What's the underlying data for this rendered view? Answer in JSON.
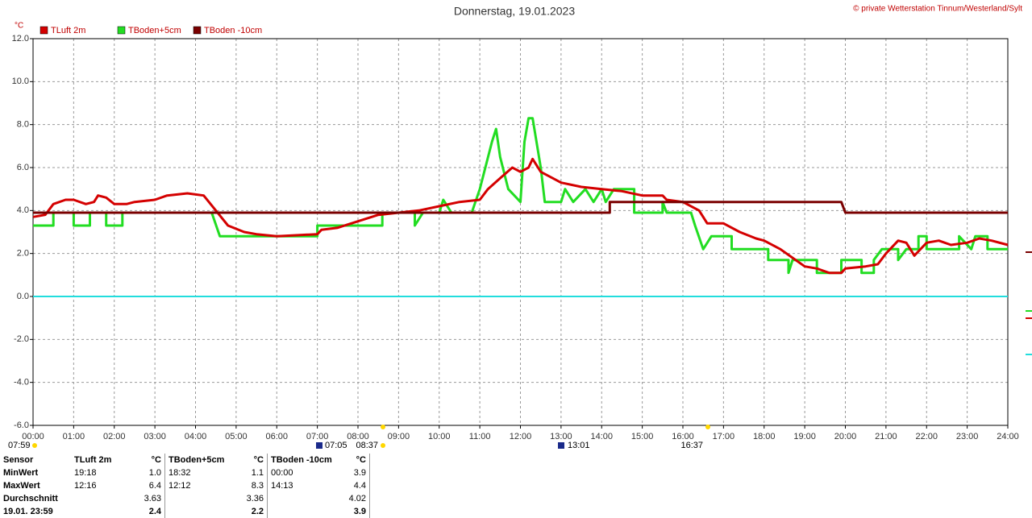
{
  "chart_data": {
    "type": "line",
    "title": "Donnerstag, 19.01.2023",
    "credit": "© private Wetterstation Tinnum/Westerland/Sylt",
    "y_unit": "°C",
    "xlim": [
      0,
      24
    ],
    "ylim": [
      -6,
      12
    ],
    "grid": true,
    "xticks": [
      {
        "value": 0,
        "label": "00:00"
      },
      {
        "value": 1,
        "label": "01:00"
      },
      {
        "value": 2,
        "label": "02:00"
      },
      {
        "value": 3,
        "label": "03:00"
      },
      {
        "value": 4,
        "label": "04:00"
      },
      {
        "value": 5,
        "label": "05:00"
      },
      {
        "value": 6,
        "label": "06:00"
      },
      {
        "value": 7,
        "label": "07:00"
      },
      {
        "value": 8,
        "label": "08:00"
      },
      {
        "value": 9,
        "label": "09:00"
      },
      {
        "value": 10,
        "label": "10:00"
      },
      {
        "value": 11,
        "label": "11:00"
      },
      {
        "value": 12,
        "label": "12:00"
      },
      {
        "value": 13,
        "label": "13:00"
      },
      {
        "value": 14,
        "label": "14:00"
      },
      {
        "value": 15,
        "label": "15:00"
      },
      {
        "value": 16,
        "label": "16:00"
      },
      {
        "value": 17,
        "label": "17:00"
      },
      {
        "value": 18,
        "label": "18:00"
      },
      {
        "value": 19,
        "label": "19:00"
      },
      {
        "value": 20,
        "label": "20:00"
      },
      {
        "value": 21,
        "label": "21:00"
      },
      {
        "value": 22,
        "label": "22:00"
      },
      {
        "value": 23,
        "label": "23:00"
      },
      {
        "value": 24,
        "label": "24:00"
      }
    ],
    "yticks": [
      {
        "value": -6,
        "label": "-6.0"
      },
      {
        "value": -4,
        "label": "-4.0"
      },
      {
        "value": -2,
        "label": "-2.0"
      },
      {
        "value": 0,
        "label": "0.0"
      },
      {
        "value": 2,
        "label": "2.0"
      },
      {
        "value": 4,
        "label": "4.0"
      },
      {
        "value": 6,
        "label": "6.0"
      },
      {
        "value": 8,
        "label": "8.0"
      },
      {
        "value": 10,
        "label": "10.0"
      },
      {
        "value": 12,
        "label": "12.0"
      }
    ],
    "reference_line": {
      "value": 0,
      "color": "#22dddd"
    },
    "series": [
      {
        "name": "TLuft 2m",
        "color": "#d40000",
        "x": [
          0,
          0.3,
          0.5,
          0.8,
          1.0,
          1.3,
          1.5,
          1.6,
          1.8,
          2.0,
          2.3,
          2.5,
          3.0,
          3.3,
          3.8,
          4.2,
          4.5,
          4.8,
          5.2,
          5.5,
          6.0,
          7.0,
          7.1,
          7.5,
          8.0,
          8.5,
          9.0,
          9.5,
          10.0,
          10.5,
          11.0,
          11.2,
          11.5,
          11.8,
          12.0,
          12.2,
          12.3,
          12.5,
          12.8,
          13.0,
          13.5,
          14.0,
          14.5,
          15.0,
          15.5,
          15.6,
          16.0,
          16.4,
          16.6,
          17.0,
          17.4,
          17.8,
          18.0,
          18.4,
          18.7,
          19.0,
          19.3,
          19.6,
          19.9,
          20.0,
          20.5,
          20.8,
          21.0,
          21.3,
          21.5,
          21.7,
          22.0,
          22.3,
          22.6,
          23.0,
          23.3,
          23.6,
          24.0
        ],
        "values": [
          3.7,
          3.8,
          4.3,
          4.5,
          4.5,
          4.3,
          4.4,
          4.7,
          4.6,
          4.3,
          4.3,
          4.4,
          4.5,
          4.7,
          4.8,
          4.7,
          4.0,
          3.3,
          3.0,
          2.9,
          2.8,
          2.9,
          3.1,
          3.2,
          3.5,
          3.8,
          3.9,
          4.0,
          4.2,
          4.4,
          4.5,
          5.0,
          5.5,
          6.0,
          5.8,
          6.0,
          6.4,
          5.8,
          5.5,
          5.3,
          5.1,
          5.0,
          4.9,
          4.7,
          4.7,
          4.5,
          4.4,
          4.0,
          3.4,
          3.4,
          3.0,
          2.7,
          2.6,
          2.2,
          1.8,
          1.4,
          1.3,
          1.1,
          1.1,
          1.3,
          1.4,
          1.5,
          2.0,
          2.6,
          2.5,
          1.9,
          2.5,
          2.6,
          2.4,
          2.5,
          2.7,
          2.6,
          2.4
        ]
      },
      {
        "name": "TBoden+5cm",
        "color": "#22dd22",
        "x": [
          0,
          0.5,
          0.5,
          1.0,
          1.0,
          1.4,
          1.4,
          1.8,
          1.8,
          2.2,
          2.2,
          4.4,
          4.6,
          7.0,
          7.0,
          8.6,
          8.6,
          9.4,
          9.4,
          9.6,
          10.0,
          10.1,
          10.3,
          10.8,
          11.0,
          11.3,
          11.4,
          11.5,
          11.7,
          12.0,
          12.1,
          12.2,
          12.3,
          12.5,
          12.6,
          13.0,
          13.1,
          13.3,
          13.6,
          13.8,
          14.0,
          14.1,
          14.3,
          14.8,
          14.8,
          15.5,
          15.5,
          15.6,
          16.2,
          16.3,
          16.5,
          16.7,
          17.2,
          17.2,
          18.1,
          18.1,
          18.6,
          18.6,
          18.7,
          19.3,
          19.3,
          19.9,
          19.9,
          20.4,
          20.4,
          20.7,
          20.7,
          20.9,
          21.3,
          21.3,
          21.5,
          21.8,
          21.8,
          22.0,
          22.0,
          22.8,
          22.8,
          23.1,
          23.2,
          23.5,
          23.5,
          24.0
        ],
        "values": [
          3.3,
          3.3,
          3.9,
          3.9,
          3.3,
          3.3,
          3.9,
          3.9,
          3.3,
          3.3,
          3.9,
          3.9,
          2.8,
          2.8,
          3.3,
          3.3,
          3.9,
          3.9,
          3.3,
          3.9,
          3.9,
          4.5,
          3.9,
          3.9,
          5.0,
          7.2,
          7.8,
          6.5,
          5.0,
          4.4,
          7.2,
          8.3,
          8.3,
          6.0,
          4.4,
          4.4,
          5.0,
          4.4,
          5.0,
          4.4,
          5.0,
          4.4,
          5.0,
          5.0,
          3.9,
          3.9,
          4.4,
          3.9,
          3.9,
          3.3,
          2.2,
          2.8,
          2.8,
          2.2,
          2.2,
          1.7,
          1.7,
          1.1,
          1.7,
          1.7,
          1.1,
          1.1,
          1.7,
          1.7,
          1.1,
          1.1,
          1.7,
          2.2,
          2.2,
          1.7,
          2.2,
          2.2,
          2.8,
          2.8,
          2.2,
          2.2,
          2.8,
          2.2,
          2.8,
          2.8,
          2.2,
          2.2
        ]
      },
      {
        "name": "TBoden -10cm",
        "color": "#7a0000",
        "x": [
          0,
          14.2,
          14.2,
          19.9,
          20.0,
          24.0
        ],
        "values": [
          3.9,
          3.9,
          4.4,
          4.4,
          3.9,
          3.9
        ]
      }
    ],
    "time_labels": [
      "07:59",
      "07:05",
      "08:37",
      "13:01",
      "16:37"
    ]
  },
  "table": {
    "header": [
      "Sensor",
      "TLuft 2m",
      "°C",
      "TBoden+5cm",
      "°C",
      "TBoden -10cm",
      "°C"
    ],
    "rows": [
      [
        "MinWert",
        "19:18",
        "1.0",
        "18:32",
        "1.1",
        "00:00",
        "3.9"
      ],
      [
        "MaxWert",
        "12:16",
        "6.4",
        "12:12",
        "8.3",
        "14:13",
        "4.4"
      ],
      [
        "Durchschnitt",
        null,
        "3.63",
        null,
        "3.36",
        null,
        "4.02"
      ],
      [
        "19.01. 23:59",
        null,
        "2.4",
        null,
        "2.2",
        null,
        "3.9"
      ]
    ]
  }
}
